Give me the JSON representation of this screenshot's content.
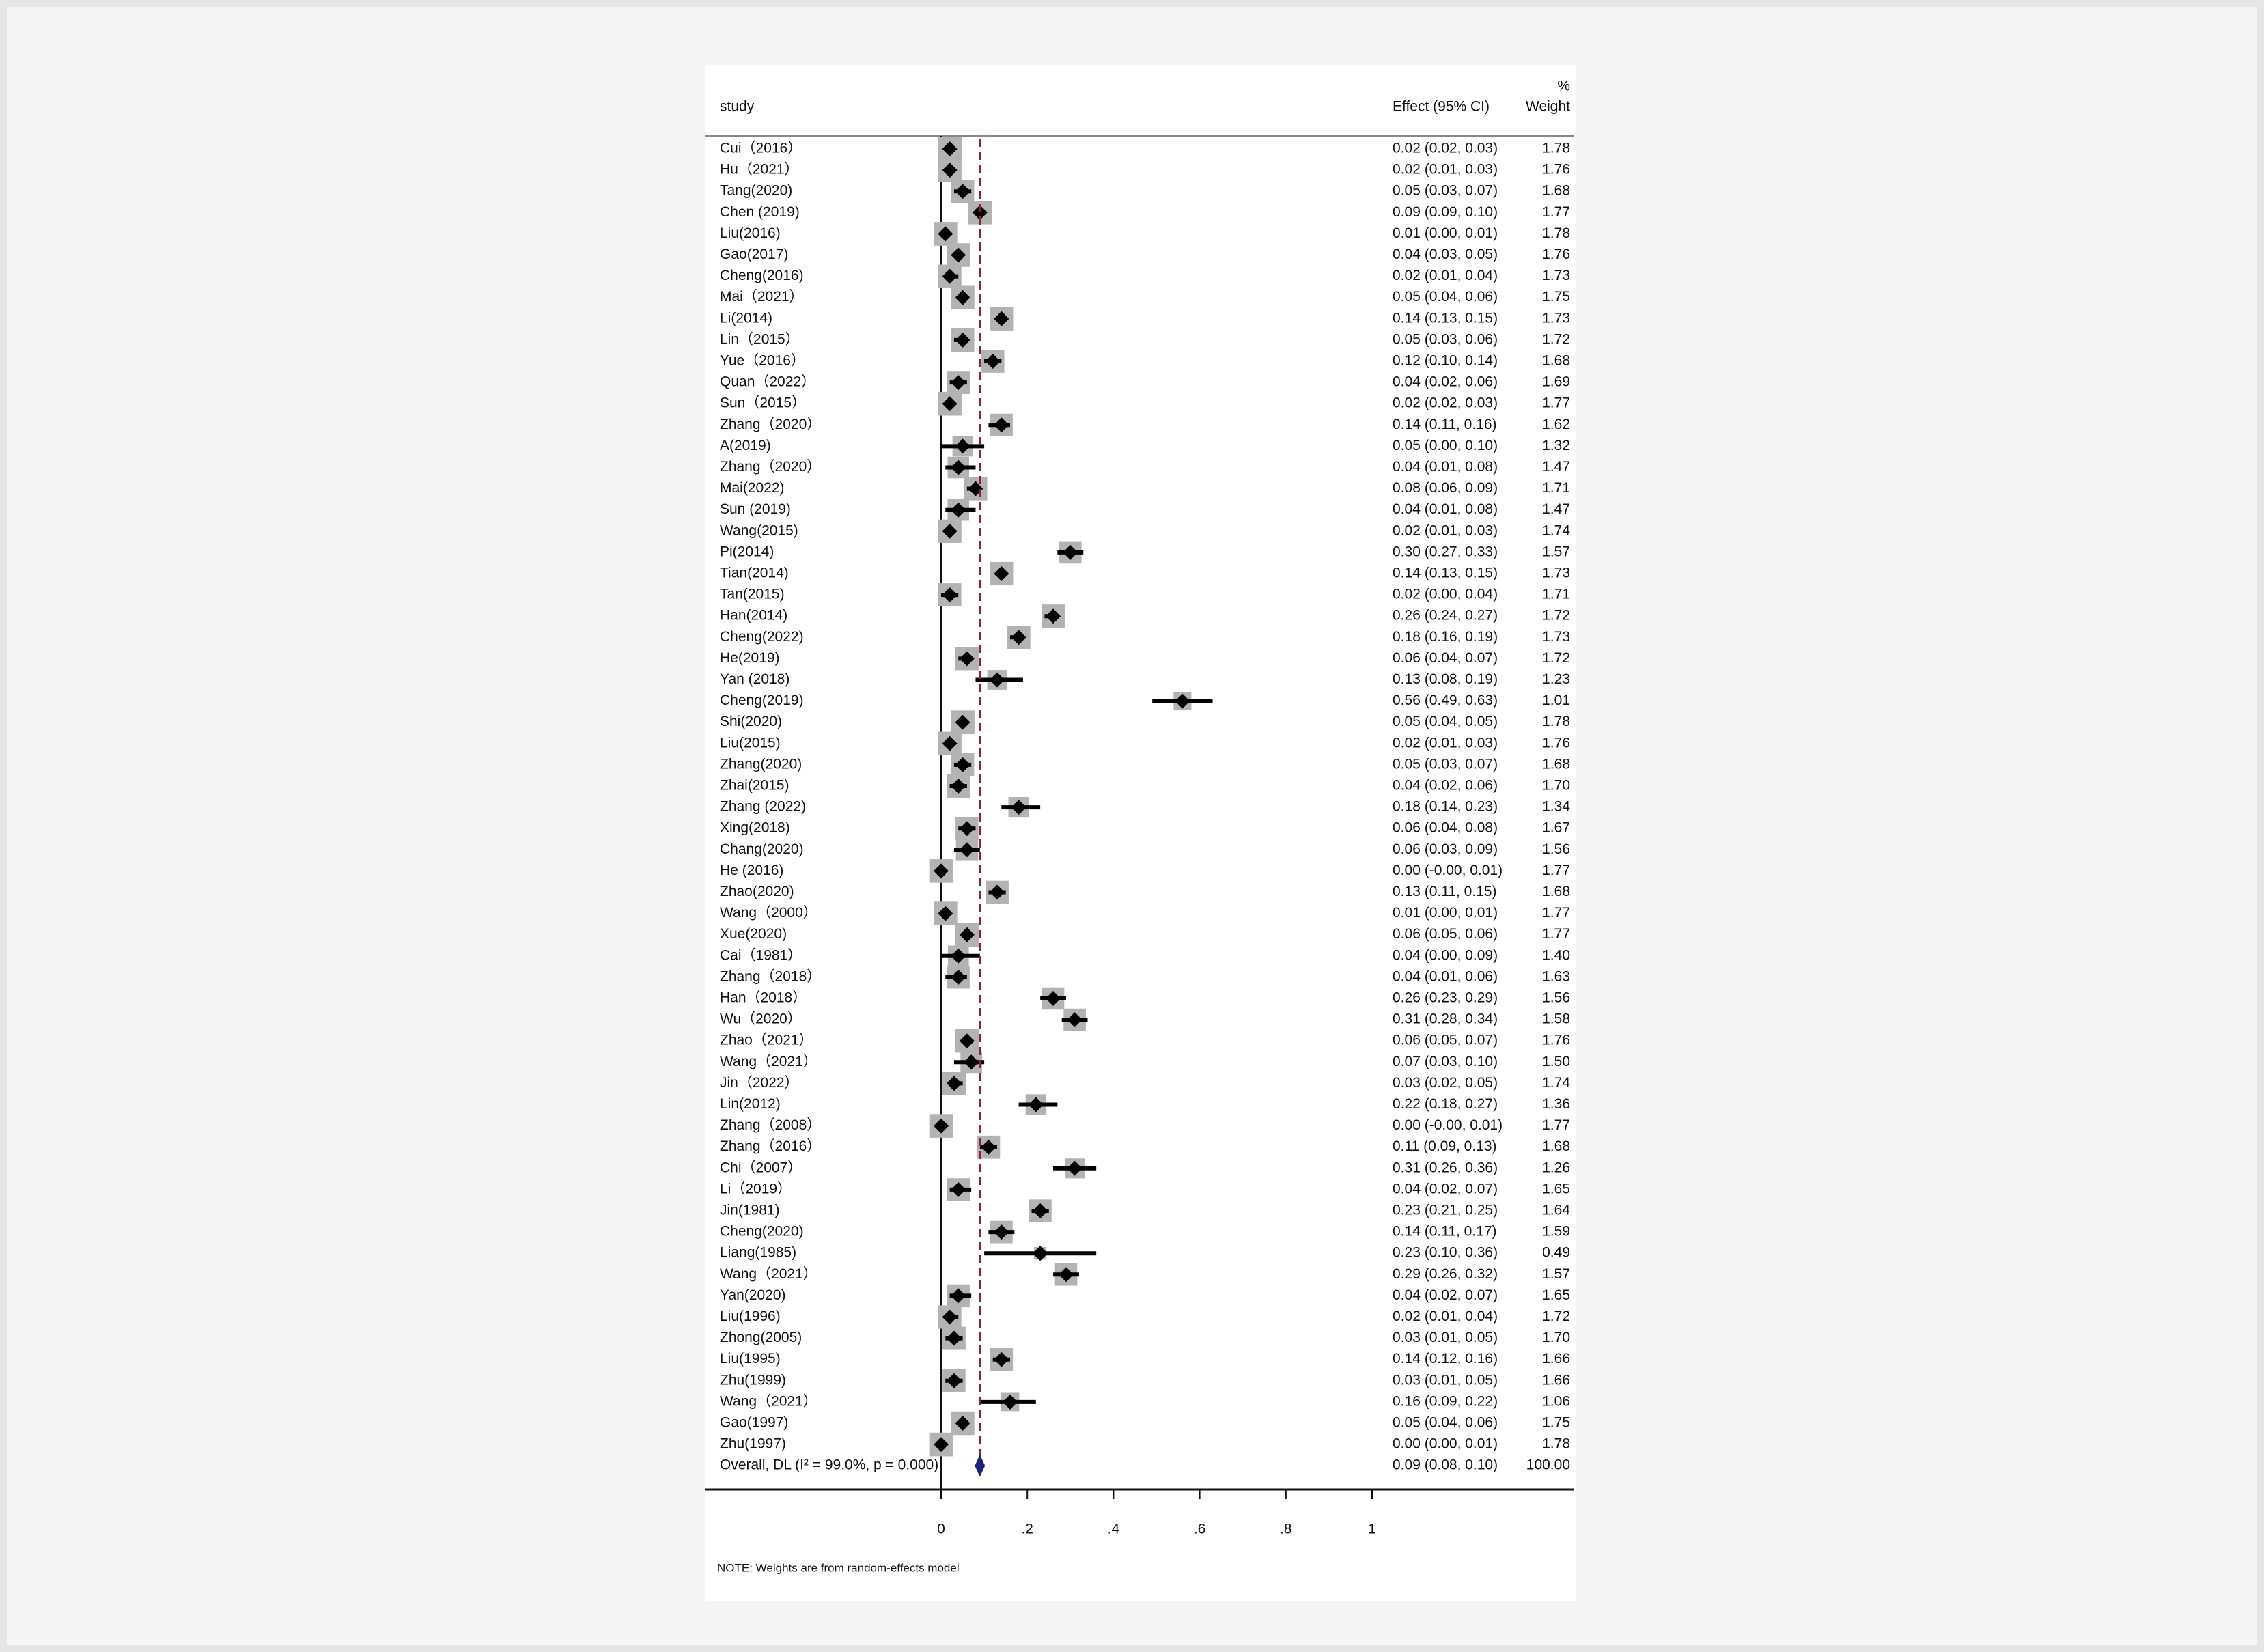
{
  "chart_data": {
    "type": "forest",
    "headers": {
      "study": "study",
      "effect": "Effect (95% CI)",
      "weight_top": "%",
      "weight": "Weight"
    },
    "rows": [
      {
        "name": "Cui（2016）",
        "effect": 0.02,
        "lower": 0.02,
        "upper": 0.03,
        "label": "0.02 (0.02, 0.03)",
        "weight": 1.78,
        "weight_label": "1.78"
      },
      {
        "name": "Hu（2021）",
        "effect": 0.02,
        "lower": 0.01,
        "upper": 0.03,
        "label": "0.02 (0.01, 0.03)",
        "weight": 1.76,
        "weight_label": "1.76"
      },
      {
        "name": "Tang(2020)",
        "effect": 0.05,
        "lower": 0.03,
        "upper": 0.07,
        "label": "0.05 (0.03, 0.07)",
        "weight": 1.68,
        "weight_label": "1.68"
      },
      {
        "name": "Chen (2019)",
        "effect": 0.09,
        "lower": 0.09,
        "upper": 0.1,
        "label": "0.09 (0.09, 0.10)",
        "weight": 1.77,
        "weight_label": "1.77"
      },
      {
        "name": "Liu(2016)",
        "effect": 0.01,
        "lower": 0.0,
        "upper": 0.01,
        "label": "0.01 (0.00, 0.01)",
        "weight": 1.78,
        "weight_label": "1.78"
      },
      {
        "name": "Gao(2017)",
        "effect": 0.04,
        "lower": 0.03,
        "upper": 0.05,
        "label": "0.04 (0.03, 0.05)",
        "weight": 1.76,
        "weight_label": "1.76"
      },
      {
        "name": "Cheng(2016)",
        "effect": 0.02,
        "lower": 0.01,
        "upper": 0.04,
        "label": "0.02 (0.01, 0.04)",
        "weight": 1.73,
        "weight_label": "1.73"
      },
      {
        "name": "Mai（2021）",
        "effect": 0.05,
        "lower": 0.04,
        "upper": 0.06,
        "label": "0.05 (0.04, 0.06)",
        "weight": 1.75,
        "weight_label": "1.75"
      },
      {
        "name": "Li(2014)",
        "effect": 0.14,
        "lower": 0.13,
        "upper": 0.15,
        "label": "0.14 (0.13, 0.15)",
        "weight": 1.73,
        "weight_label": "1.73"
      },
      {
        "name": "Lin（2015）",
        "effect": 0.05,
        "lower": 0.03,
        "upper": 0.06,
        "label": "0.05 (0.03, 0.06)",
        "weight": 1.72,
        "weight_label": "1.72"
      },
      {
        "name": "Yue（2016）",
        "effect": 0.12,
        "lower": 0.1,
        "upper": 0.14,
        "label": "0.12 (0.10, 0.14)",
        "weight": 1.68,
        "weight_label": "1.68"
      },
      {
        "name": "Quan（2022）",
        "effect": 0.04,
        "lower": 0.02,
        "upper": 0.06,
        "label": "0.04 (0.02, 0.06)",
        "weight": 1.69,
        "weight_label": "1.69"
      },
      {
        "name": "Sun（2015）",
        "effect": 0.02,
        "lower": 0.02,
        "upper": 0.03,
        "label": "0.02 (0.02, 0.03)",
        "weight": 1.77,
        "weight_label": "1.77"
      },
      {
        "name": "Zhang（2020）",
        "effect": 0.14,
        "lower": 0.11,
        "upper": 0.16,
        "label": "0.14 (0.11, 0.16)",
        "weight": 1.62,
        "weight_label": "1.62"
      },
      {
        "name": "A(2019)",
        "effect": 0.05,
        "lower": 0.0,
        "upper": 0.1,
        "label": "0.05 (0.00, 0.10)",
        "weight": 1.32,
        "weight_label": "1.32"
      },
      {
        "name": "Zhang（2020）",
        "effect": 0.04,
        "lower": 0.01,
        "upper": 0.08,
        "label": "0.04 (0.01, 0.08)",
        "weight": 1.47,
        "weight_label": "1.47"
      },
      {
        "name": "Mai(2022)",
        "effect": 0.08,
        "lower": 0.06,
        "upper": 0.09,
        "label": "0.08 (0.06, 0.09)",
        "weight": 1.71,
        "weight_label": "1.71"
      },
      {
        "name": "Sun (2019)",
        "effect": 0.04,
        "lower": 0.01,
        "upper": 0.08,
        "label": "0.04 (0.01, 0.08)",
        "weight": 1.47,
        "weight_label": "1.47"
      },
      {
        "name": "Wang(2015)",
        "effect": 0.02,
        "lower": 0.01,
        "upper": 0.03,
        "label": "0.02 (0.01, 0.03)",
        "weight": 1.74,
        "weight_label": "1.74"
      },
      {
        "name": "Pi(2014)",
        "effect": 0.3,
        "lower": 0.27,
        "upper": 0.33,
        "label": "0.30 (0.27, 0.33)",
        "weight": 1.57,
        "weight_label": "1.57"
      },
      {
        "name": "Tian(2014)",
        "effect": 0.14,
        "lower": 0.13,
        "upper": 0.15,
        "label": "0.14 (0.13, 0.15)",
        "weight": 1.73,
        "weight_label": "1.73"
      },
      {
        "name": "Tan(2015)",
        "effect": 0.02,
        "lower": 0.0,
        "upper": 0.04,
        "label": "0.02 (0.00, 0.04)",
        "weight": 1.71,
        "weight_label": "1.71"
      },
      {
        "name": "Han(2014)",
        "effect": 0.26,
        "lower": 0.24,
        "upper": 0.27,
        "label": "0.26 (0.24, 0.27)",
        "weight": 1.72,
        "weight_label": "1.72"
      },
      {
        "name": "Cheng(2022)",
        "effect": 0.18,
        "lower": 0.16,
        "upper": 0.19,
        "label": "0.18 (0.16, 0.19)",
        "weight": 1.73,
        "weight_label": "1.73"
      },
      {
        "name": "He(2019)",
        "effect": 0.06,
        "lower": 0.04,
        "upper": 0.07,
        "label": "0.06 (0.04, 0.07)",
        "weight": 1.72,
        "weight_label": "1.72"
      },
      {
        "name": "Yan (2018)",
        "effect": 0.13,
        "lower": 0.08,
        "upper": 0.19,
        "label": "0.13 (0.08, 0.19)",
        "weight": 1.23,
        "weight_label": "1.23"
      },
      {
        "name": "Cheng(2019)",
        "effect": 0.56,
        "lower": 0.49,
        "upper": 0.63,
        "label": "0.56 (0.49, 0.63)",
        "weight": 1.01,
        "weight_label": "1.01"
      },
      {
        "name": "Shi(2020)",
        "effect": 0.05,
        "lower": 0.04,
        "upper": 0.05,
        "label": "0.05 (0.04, 0.05)",
        "weight": 1.78,
        "weight_label": "1.78"
      },
      {
        "name": "Liu(2015)",
        "effect": 0.02,
        "lower": 0.01,
        "upper": 0.03,
        "label": "0.02 (0.01, 0.03)",
        "weight": 1.76,
        "weight_label": "1.76"
      },
      {
        "name": "Zhang(2020)",
        "effect": 0.05,
        "lower": 0.03,
        "upper": 0.07,
        "label": "0.05 (0.03, 0.07)",
        "weight": 1.68,
        "weight_label": "1.68"
      },
      {
        "name": "Zhai(2015)",
        "effect": 0.04,
        "lower": 0.02,
        "upper": 0.06,
        "label": "0.04 (0.02, 0.06)",
        "weight": 1.7,
        "weight_label": "1.70"
      },
      {
        "name": "Zhang (2022)",
        "effect": 0.18,
        "lower": 0.14,
        "upper": 0.23,
        "label": "0.18 (0.14, 0.23)",
        "weight": 1.34,
        "weight_label": "1.34"
      },
      {
        "name": "Xing(2018)",
        "effect": 0.06,
        "lower": 0.04,
        "upper": 0.08,
        "label": "0.06 (0.04, 0.08)",
        "weight": 1.67,
        "weight_label": "1.67"
      },
      {
        "name": "Chang(2020)",
        "effect": 0.06,
        "lower": 0.03,
        "upper": 0.09,
        "label": "0.06 (0.03, 0.09)",
        "weight": 1.56,
        "weight_label": "1.56"
      },
      {
        "name": "He (2016)",
        "effect": 0.0,
        "lower": 0.0,
        "upper": 0.01,
        "label": "0.00 (-0.00, 0.01)",
        "weight": 1.77,
        "weight_label": "1.77"
      },
      {
        "name": "Zhao(2020)",
        "effect": 0.13,
        "lower": 0.11,
        "upper": 0.15,
        "label": "0.13 (0.11, 0.15)",
        "weight": 1.68,
        "weight_label": "1.68"
      },
      {
        "name": "Wang（2000）",
        "effect": 0.01,
        "lower": 0.0,
        "upper": 0.01,
        "label": "0.01 (0.00, 0.01)",
        "weight": 1.77,
        "weight_label": "1.77"
      },
      {
        "name": "Xue(2020)",
        "effect": 0.06,
        "lower": 0.05,
        "upper": 0.06,
        "label": "0.06 (0.05, 0.06)",
        "weight": 1.77,
        "weight_label": "1.77"
      },
      {
        "name": "Cai（1981）",
        "effect": 0.04,
        "lower": 0.0,
        "upper": 0.09,
        "label": "0.04 (0.00, 0.09)",
        "weight": 1.4,
        "weight_label": "1.40"
      },
      {
        "name": "Zhang（2018）",
        "effect": 0.04,
        "lower": 0.01,
        "upper": 0.06,
        "label": "0.04 (0.01, 0.06)",
        "weight": 1.63,
        "weight_label": "1.63"
      },
      {
        "name": "Han（2018）",
        "effect": 0.26,
        "lower": 0.23,
        "upper": 0.29,
        "label": "0.26 (0.23, 0.29)",
        "weight": 1.56,
        "weight_label": "1.56"
      },
      {
        "name": "Wu（2020）",
        "effect": 0.31,
        "lower": 0.28,
        "upper": 0.34,
        "label": "0.31 (0.28, 0.34)",
        "weight": 1.58,
        "weight_label": "1.58"
      },
      {
        "name": "Zhao（2021）",
        "effect": 0.06,
        "lower": 0.05,
        "upper": 0.07,
        "label": "0.06 (0.05, 0.07)",
        "weight": 1.76,
        "weight_label": "1.76"
      },
      {
        "name": "Wang（2021）",
        "effect": 0.07,
        "lower": 0.03,
        "upper": 0.1,
        "label": "0.07 (0.03, 0.10)",
        "weight": 1.5,
        "weight_label": "1.50"
      },
      {
        "name": "Jin（2022）",
        "effect": 0.03,
        "lower": 0.02,
        "upper": 0.05,
        "label": "0.03 (0.02, 0.05)",
        "weight": 1.74,
        "weight_label": "1.74"
      },
      {
        "name": "Lin(2012)",
        "effect": 0.22,
        "lower": 0.18,
        "upper": 0.27,
        "label": "0.22 (0.18, 0.27)",
        "weight": 1.36,
        "weight_label": "1.36"
      },
      {
        "name": "Zhang（2008）",
        "effect": 0.0,
        "lower": 0.0,
        "upper": 0.01,
        "label": "0.00 (-0.00, 0.01)",
        "weight": 1.77,
        "weight_label": "1.77"
      },
      {
        "name": "Zhang（2016）",
        "effect": 0.11,
        "lower": 0.09,
        "upper": 0.13,
        "label": "0.11 (0.09, 0.13)",
        "weight": 1.68,
        "weight_label": "1.68"
      },
      {
        "name": "Chi（2007）",
        "effect": 0.31,
        "lower": 0.26,
        "upper": 0.36,
        "label": "0.31 (0.26, 0.36)",
        "weight": 1.26,
        "weight_label": "1.26"
      },
      {
        "name": "Li（2019）",
        "effect": 0.04,
        "lower": 0.02,
        "upper": 0.07,
        "label": "0.04 (0.02, 0.07)",
        "weight": 1.65,
        "weight_label": "1.65"
      },
      {
        "name": "Jin(1981)",
        "effect": 0.23,
        "lower": 0.21,
        "upper": 0.25,
        "label": "0.23 (0.21, 0.25)",
        "weight": 1.64,
        "weight_label": "1.64"
      },
      {
        "name": "Cheng(2020)",
        "effect": 0.14,
        "lower": 0.11,
        "upper": 0.17,
        "label": "0.14 (0.11, 0.17)",
        "weight": 1.59,
        "weight_label": "1.59"
      },
      {
        "name": "Liang(1985)",
        "effect": 0.23,
        "lower": 0.1,
        "upper": 0.36,
        "label": "0.23 (0.10, 0.36)",
        "weight": 0.49,
        "weight_label": "0.49"
      },
      {
        "name": "Wang（2021）",
        "effect": 0.29,
        "lower": 0.26,
        "upper": 0.32,
        "label": "0.29 (0.26, 0.32)",
        "weight": 1.57,
        "weight_label": "1.57"
      },
      {
        "name": "Yan(2020)",
        "effect": 0.04,
        "lower": 0.02,
        "upper": 0.07,
        "label": "0.04 (0.02, 0.07)",
        "weight": 1.65,
        "weight_label": "1.65"
      },
      {
        "name": "Liu(1996)",
        "effect": 0.02,
        "lower": 0.01,
        "upper": 0.04,
        "label": "0.02 (0.01, 0.04)",
        "weight": 1.72,
        "weight_label": "1.72"
      },
      {
        "name": "Zhong(2005)",
        "effect": 0.03,
        "lower": 0.01,
        "upper": 0.05,
        "label": "0.03 (0.01, 0.05)",
        "weight": 1.7,
        "weight_label": "1.70"
      },
      {
        "name": "Liu(1995)",
        "effect": 0.14,
        "lower": 0.12,
        "upper": 0.16,
        "label": "0.14 (0.12, 0.16)",
        "weight": 1.66,
        "weight_label": "1.66"
      },
      {
        "name": "Zhu(1999)",
        "effect": 0.03,
        "lower": 0.01,
        "upper": 0.05,
        "label": "0.03 (0.01, 0.05)",
        "weight": 1.66,
        "weight_label": "1.66"
      },
      {
        "name": "Wang（2021）",
        "effect": 0.16,
        "lower": 0.09,
        "upper": 0.22,
        "label": "0.16 (0.09, 0.22)",
        "weight": 1.06,
        "weight_label": "1.06"
      },
      {
        "name": "Gao(1997)",
        "effect": 0.05,
        "lower": 0.04,
        "upper": 0.06,
        "label": "0.05 (0.04, 0.06)",
        "weight": 1.75,
        "weight_label": "1.75"
      },
      {
        "name": "Zhu(1997)",
        "effect": 0.0,
        "lower": 0.0,
        "upper": 0.01,
        "label": "0.00 (0.00, 0.01)",
        "weight": 1.78,
        "weight_label": "1.78"
      }
    ],
    "overall": {
      "name": "Overall, DL (I² = 99.0%, p = 0.000)",
      "effect": 0.09,
      "lower": 0.08,
      "upper": 0.1,
      "label": "0.09 (0.08, 0.10)",
      "weight": 100,
      "weight_label": "100.00"
    },
    "xlim": [
      0,
      1
    ],
    "xticks": [
      0,
      {
        "value": 0.2,
        "label": ".2"
      },
      {
        "value": 0.4,
        "label": ".4"
      },
      {
        "value": 0.6,
        "label": ".6"
      },
      {
        "value": 0.8,
        "label": ".8"
      },
      1
    ],
    "note": "NOTE: Weights are from random-effects model",
    "box_color": "#b3b3b3",
    "marker_color": "#000000",
    "overall_color": "#1a237e",
    "ref_line_color": "#8b2332"
  }
}
